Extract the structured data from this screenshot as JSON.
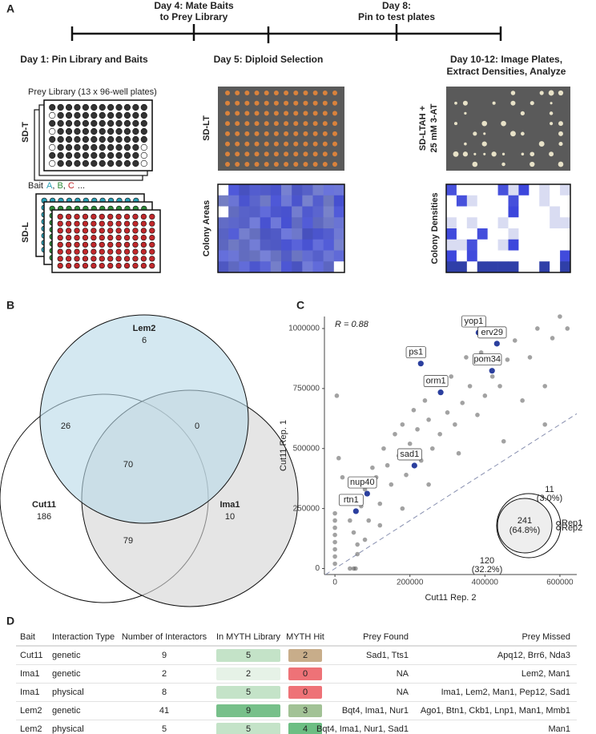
{
  "panel_a": {
    "label": "A",
    "timeline_labels": [
      [
        "Day 4: Mate Baits",
        "to Prey Library"
      ],
      [
        "Day 8:",
        "Pin to test plates"
      ]
    ],
    "headings": [
      "Day 1: Pin Library and Baits",
      "Day 5: Diploid Selection"
    ],
    "heading3": [
      "Day 10-12: Image Plates,",
      "Extract Densities, Analyze"
    ],
    "prey_library": "Prey Library (13 x 96-well plates)",
    "bait": {
      "prefix": "Bait",
      "letters": [
        {
          "text": "A",
          "color": "#2a9fb5"
        },
        {
          "text": "B",
          "color": "#2e8b3a"
        },
        {
          "text": "C",
          "color": "#c0282b"
        }
      ],
      "suffix": "..."
    },
    "media": {
      "prey": "SD-T",
      "bait": "SD-L",
      "diploid": "SD-LT",
      "areas": "Colony Areas",
      "test": [
        "SD-LTAH +",
        "25 mM 3-AT"
      ],
      "densities": "Colony Densities"
    }
  },
  "panel_b": {
    "label": "B",
    "sets": {
      "Lem2": {
        "name": "Lem2",
        "count": 6,
        "color": "#b7d9e8"
      },
      "Cut11": {
        "name": "Cut11",
        "count": 186,
        "color": "#ffffff"
      },
      "Ima1": {
        "name": "Ima1",
        "count": 10,
        "color": "#d4d4d4"
      }
    },
    "intersections": {
      "Cut11_Lem2": 26,
      "Lem2_Ima1": 0,
      "all": 70,
      "Cut11_Ima1": 79
    }
  },
  "panel_c": {
    "label": "C",
    "chart_data": {
      "type": "scatter",
      "xlabel": "Cut11 Rep. 2",
      "ylabel": "Cut11 Rep. 1",
      "annotation": "R = 0.88",
      "color": "#555555",
      "highlight_color": "#2b3f9e",
      "identity_line": true,
      "xlim": [
        -28000,
        645000
      ],
      "ylim": [
        -25000,
        1050000
      ],
      "xticks": [
        0,
        200000,
        400000,
        600000
      ],
      "yticks": [
        0,
        250000,
        500000,
        750000,
        1000000
      ],
      "x": [
        5000,
        10000,
        20000,
        30000,
        40000,
        50000,
        60000,
        70000,
        80000,
        90000,
        100000,
        110000,
        120000,
        130000,
        140000,
        150000,
        160000,
        170000,
        180000,
        190000,
        200000,
        210000,
        220000,
        230000,
        240000,
        250000,
        260000,
        270000,
        280000,
        300000,
        310000,
        320000,
        340000,
        350000,
        360000,
        380000,
        390000,
        400000,
        420000,
        440000,
        460000,
        480000,
        500000,
        520000,
        540000,
        560000,
        580000,
        600000,
        620000,
        560000,
        450000,
        330000,
        250000,
        180000,
        120000,
        80000,
        60000,
        40000,
        50000,
        55000,
        0,
        0,
        0,
        0,
        0,
        0,
        0,
        0
      ],
      "y": [
        720000,
        460000,
        380000,
        300000,
        200000,
        150000,
        100000,
        260000,
        330000,
        200000,
        420000,
        380000,
        270000,
        500000,
        430000,
        350000,
        560000,
        470000,
        600000,
        390000,
        520000,
        660000,
        580000,
        450000,
        700000,
        620000,
        500000,
        780000,
        560000,
        650000,
        800000,
        600000,
        690000,
        880000,
        760000,
        640000,
        900000,
        720000,
        800000,
        760000,
        870000,
        950000,
        700000,
        880000,
        1000000,
        760000,
        960000,
        1050000,
        1000000,
        600000,
        530000,
        480000,
        350000,
        250000,
        180000,
        120000,
        60000,
        0,
        0,
        0,
        20000,
        50000,
        80000,
        110000,
        140000,
        170000,
        200000,
        230000
      ],
      "highlights": [
        {
          "name": "yop1",
          "x": 383000,
          "y": 983000
        },
        {
          "name": "erv29",
          "x": 432000,
          "y": 937000
        },
        {
          "name": "ps1",
          "x": 229000,
          "y": 854000
        },
        {
          "name": "pom34",
          "x": 419000,
          "y": 824000
        },
        {
          "name": "orm1",
          "x": 282000,
          "y": 734000
        },
        {
          "name": "sad1",
          "x": 212000,
          "y": 429000
        },
        {
          "name": "nup40",
          "x": 86000,
          "y": 312000
        },
        {
          "name": "rtn1",
          "x": 56000,
          "y": 239000
        }
      ],
      "inset": {
        "shared": [
          "241",
          "(64.8%)"
        ],
        "rep1_only": [
          "11",
          "(3.0%)"
        ],
        "rep2_only": [
          "120",
          "(32.2%)"
        ],
        "legend": [
          "Rep1",
          "Rep2"
        ]
      }
    }
  },
  "panel_d": {
    "label": "D",
    "table": {
      "columns": [
        "Bait",
        "Interaction Type",
        "Number of Interactors",
        "In MYTH Library",
        "MYTH Hit",
        "Prey Found",
        "Prey Missed"
      ],
      "rows": [
        [
          "Cut11",
          "genetic",
          9,
          5,
          2,
          "Sad1, Tts1",
          "Apq12, Brr6, Nda3"
        ],
        [
          "Ima1",
          "genetic",
          2,
          2,
          0,
          "NA",
          "Lem2, Man1"
        ],
        [
          "Ima1",
          "physical",
          8,
          5,
          0,
          "NA",
          "Ima1, Lem2, Man1, Pep12, Sad1"
        ],
        [
          "Lem2",
          "genetic",
          41,
          9,
          3,
          "Bqt4, Ima1, Nur1",
          "Ago1, Btn1, Ckb1, Lnp1, Man1, Mmb1"
        ],
        [
          "Lem2",
          "physical",
          5,
          5,
          4,
          "Bqt4, Ima1, Nur1, Sad1",
          "Man1"
        ]
      ],
      "library_colors": [
        "#c4e3c8",
        "#e6f2e7",
        "#c4e3c8",
        "#77c08a",
        "#c4e3c8"
      ],
      "hit_colors": [
        "#c8ad8a",
        "#ee7277",
        "#ee7277",
        "#a2c296",
        "#6cbe83"
      ]
    }
  }
}
